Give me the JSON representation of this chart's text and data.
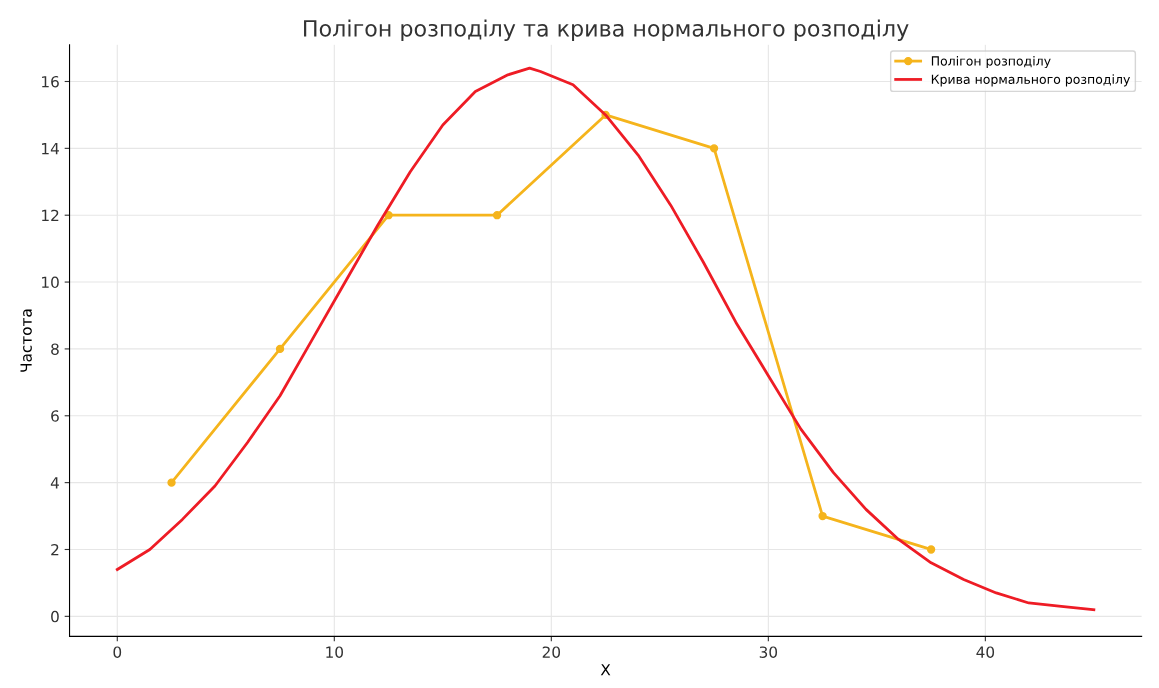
{
  "chart_data": {
    "type": "line",
    "title": "Полігон розподілу та крива нормального розподілу",
    "xlabel": "X",
    "ylabel": "Частота",
    "series": [
      {
        "name": "Полігон розподілу",
        "color": "#f5b41c",
        "marker": "circle",
        "x": [
          2.5,
          7.5,
          12.5,
          17.5,
          22.5,
          27.5,
          32.5,
          37.5
        ],
        "values": [
          4,
          8,
          12,
          12,
          15,
          14,
          3,
          2
        ]
      },
      {
        "name": "Крива нормального розподілу",
        "color": "#ee1c25",
        "marker": "none",
        "x": [
          0,
          1.5,
          3,
          4.5,
          6,
          7.5,
          9,
          10.5,
          12,
          13.5,
          15,
          16.5,
          18,
          19,
          19.5,
          21,
          22.5,
          24,
          25.5,
          27,
          28.5,
          30,
          31.5,
          33,
          34.5,
          36,
          37.5,
          39,
          40.5,
          42,
          43.5,
          45
        ],
        "values": [
          1.4,
          2.0,
          2.9,
          3.9,
          5.2,
          6.6,
          8.3,
          10.0,
          11.7,
          13.3,
          14.7,
          15.7,
          16.2,
          16.4,
          16.3,
          15.9,
          15.0,
          13.8,
          12.3,
          10.6,
          8.8,
          7.2,
          5.6,
          4.3,
          3.2,
          2.3,
          1.6,
          1.1,
          0.7,
          0.4,
          0.3,
          0.2
        ]
      }
    ],
    "xlim": [
      -2.2,
      47.2
    ],
    "xticks": [
      0,
      10,
      20,
      30,
      40
    ],
    "ylim": [
      -0.6,
      17.1
    ],
    "yticks": [
      0,
      2,
      4,
      6,
      8,
      10,
      12,
      14,
      16
    ],
    "grid": true,
    "legend": "top right",
    "line_style": "solid"
  }
}
